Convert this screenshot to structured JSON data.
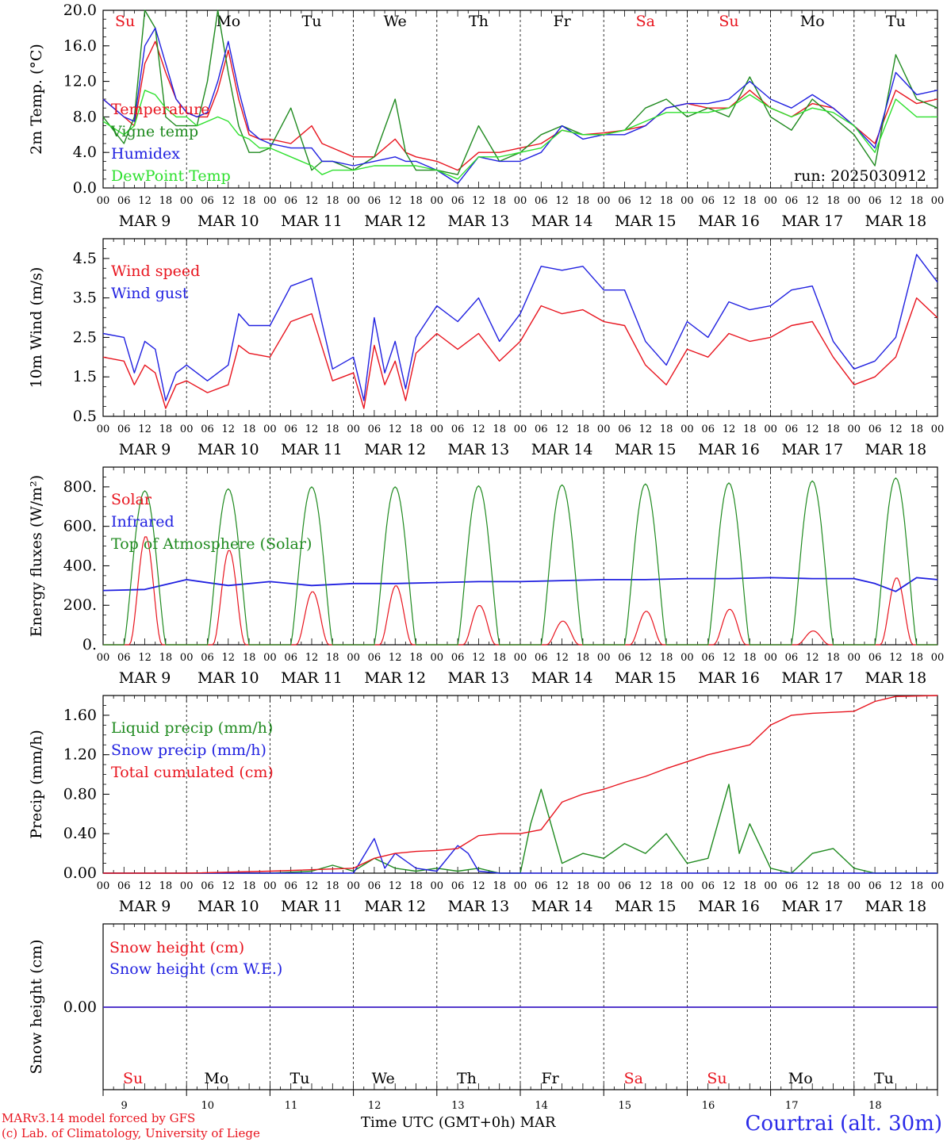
{
  "colors": {
    "red": "#e8141e",
    "green": "#1f8a1f",
    "blue": "#2020e0",
    "lightgreen": "#2ee02e",
    "black": "#000000"
  },
  "days": [
    {
      "abbr": "Su",
      "date": "9",
      "weekend": true
    },
    {
      "abbr": "Mo",
      "date": "10",
      "weekend": false
    },
    {
      "abbr": "Tu",
      "date": "11",
      "weekend": false
    },
    {
      "abbr": "We",
      "date": "12",
      "weekend": false
    },
    {
      "abbr": "Th",
      "date": "13",
      "weekend": false
    },
    {
      "abbr": "Fr",
      "date": "14",
      "weekend": false
    },
    {
      "abbr": "Sa",
      "date": "15",
      "weekend": true
    },
    {
      "abbr": "Su",
      "date": "16",
      "weekend": true
    },
    {
      "abbr": "Mo",
      "date": "17",
      "weekend": false
    },
    {
      "abbr": "Tu",
      "date": "18",
      "weekend": false
    }
  ],
  "month": "MAR",
  "hour_ticks": [
    "00",
    "06",
    "12",
    "18"
  ],
  "chart_data": [
    {
      "type": "line",
      "ylabel": "2m Temp. (°C)",
      "ylim": [
        0,
        20
      ],
      "yticks": [
        "0.0",
        "4.0",
        "8.0",
        "12.0",
        "16.0",
        "20.0"
      ],
      "run_label": "run: 2025030912",
      "x_unit": "hours since MAR 9 00 UTC",
      "series": [
        {
          "name": "Temperature",
          "color": "red",
          "x": [
            0,
            6,
            9,
            12,
            15,
            18,
            21,
            24,
            27,
            30,
            33,
            36,
            39,
            42,
            45,
            48,
            54,
            60,
            63,
            66,
            72,
            78,
            84,
            87,
            90,
            96,
            102,
            108,
            114,
            120,
            126,
            132,
            138,
            144,
            150,
            156,
            162,
            168,
            174,
            180,
            186,
            192,
            198,
            204,
            210,
            216,
            222,
            228,
            234,
            240
          ],
          "y": [
            10,
            8,
            7,
            14,
            16.5,
            13,
            10,
            8.5,
            8,
            8,
            11,
            15.5,
            10,
            6,
            5.5,
            5.5,
            5,
            7,
            5,
            4.5,
            3.5,
            3.5,
            5.5,
            4,
            3.5,
            3,
            2,
            4,
            4,
            4.5,
            5,
            6.5,
            6,
            6.2,
            6.5,
            7,
            9,
            9.5,
            9,
            9,
            11,
            9,
            8,
            9.5,
            9,
            7,
            5,
            11,
            9.5,
            10
          ]
        },
        {
          "name": "Vigne temp",
          "color": "green",
          "x": [
            0,
            6,
            9,
            12,
            15,
            18,
            21,
            24,
            27,
            30,
            33,
            36,
            39,
            42,
            45,
            48,
            54,
            60,
            63,
            66,
            72,
            78,
            84,
            87,
            90,
            96,
            102,
            108,
            114,
            120,
            126,
            132,
            138,
            144,
            150,
            156,
            162,
            168,
            174,
            180,
            186,
            192,
            198,
            204,
            210,
            216,
            222,
            228,
            234,
            240
          ],
          "y": [
            8,
            5,
            8,
            20,
            18,
            8,
            7,
            7,
            7,
            12,
            20,
            13,
            7,
            4,
            4,
            4.5,
            9,
            2,
            3,
            3,
            2,
            3.5,
            10,
            4,
            2,
            2,
            1.5,
            7,
            3,
            4,
            6,
            7,
            6,
            6,
            6.5,
            9,
            10,
            8,
            9,
            8,
            12.5,
            8,
            6.5,
            10,
            8,
            6,
            2.5,
            15,
            10,
            9
          ]
        },
        {
          "name": "Humidex",
          "color": "blue",
          "x": [
            0,
            6,
            9,
            12,
            15,
            18,
            21,
            24,
            27,
            30,
            33,
            36,
            39,
            42,
            45,
            48,
            54,
            60,
            63,
            66,
            72,
            78,
            84,
            87,
            90,
            96,
            102,
            108,
            114,
            120,
            126,
            132,
            138,
            144,
            150,
            156,
            162,
            168,
            174,
            180,
            186,
            192,
            198,
            204,
            210,
            216,
            222,
            228,
            234,
            240
          ],
          "y": [
            10,
            8,
            7.5,
            16,
            18,
            14,
            10,
            8.5,
            8,
            8.5,
            12,
            16.5,
            11,
            6.5,
            5.5,
            5,
            4.5,
            4.5,
            3,
            3,
            2.5,
            3,
            3.5,
            3,
            3,
            2,
            0.5,
            3.5,
            3,
            3,
            4,
            7,
            5.5,
            6,
            6,
            7,
            9,
            9.5,
            9.5,
            10,
            12,
            10,
            9,
            10.5,
            9,
            7,
            4.5,
            13,
            10.5,
            11
          ]
        },
        {
          "name": "DewPoint Temp",
          "color": "lightgreen",
          "x": [
            0,
            6,
            9,
            12,
            15,
            18,
            21,
            24,
            27,
            30,
            33,
            36,
            39,
            42,
            45,
            48,
            54,
            60,
            63,
            66,
            72,
            78,
            84,
            87,
            90,
            96,
            102,
            108,
            114,
            120,
            126,
            132,
            138,
            144,
            150,
            156,
            162,
            168,
            174,
            180,
            186,
            192,
            198,
            204,
            210,
            216,
            222,
            228,
            234,
            240
          ],
          "y": [
            7.5,
            6,
            7,
            11,
            10.5,
            9,
            8,
            8,
            7,
            7.5,
            8,
            7.5,
            6,
            5.5,
            4.5,
            4.5,
            3.5,
            2.5,
            1.5,
            2,
            2,
            2.5,
            2.5,
            2.5,
            2.5,
            2,
            1,
            3.5,
            3.5,
            4,
            4.5,
            6.5,
            6,
            6,
            6.5,
            7.5,
            8.5,
            8.5,
            8.5,
            9,
            10.5,
            9,
            8,
            9,
            8.5,
            7,
            4,
            10,
            8,
            8
          ]
        }
      ]
    },
    {
      "type": "line",
      "ylabel": "10m Wind (m/s)",
      "ylim": [
        0.5,
        5
      ],
      "yticks": [
        "0.5",
        "1.5",
        "2.5",
        "3.5",
        "4.5"
      ],
      "series": [
        {
          "name": "Wind speed",
          "color": "red",
          "x": [
            0,
            6,
            9,
            12,
            15,
            18,
            21,
            24,
            30,
            36,
            39,
            42,
            48,
            54,
            60,
            66,
            72,
            75,
            78,
            81,
            84,
            87,
            90,
            96,
            102,
            108,
            114,
            120,
            126,
            132,
            138,
            144,
            150,
            156,
            162,
            168,
            174,
            180,
            186,
            192,
            198,
            204,
            210,
            216,
            222,
            228,
            234,
            240
          ],
          "y": [
            2,
            1.9,
            1.3,
            1.8,
            1.6,
            0.7,
            1.3,
            1.4,
            1.1,
            1.3,
            2.3,
            2.1,
            2,
            2.9,
            3.1,
            1.4,
            1.6,
            0.7,
            2.3,
            1.3,
            1.9,
            0.9,
            2.1,
            2.6,
            2.2,
            2.6,
            1.9,
            2.4,
            3.3,
            3.1,
            3.2,
            2.9,
            2.8,
            1.8,
            1.3,
            2.2,
            2.0,
            2.6,
            2.4,
            2.5,
            2.8,
            2.9,
            2,
            1.3,
            1.5,
            2,
            3.5,
            3.0
          ]
        },
        {
          "name": "Wind gust",
          "color": "blue",
          "x": [
            0,
            6,
            9,
            12,
            15,
            18,
            21,
            24,
            30,
            36,
            39,
            42,
            48,
            54,
            60,
            66,
            72,
            75,
            78,
            81,
            84,
            87,
            90,
            96,
            102,
            108,
            114,
            120,
            126,
            132,
            138,
            144,
            150,
            156,
            162,
            168,
            174,
            180,
            186,
            192,
            198,
            204,
            210,
            216,
            222,
            228,
            234,
            240
          ],
          "y": [
            2.6,
            2.5,
            1.6,
            2.4,
            2.2,
            0.9,
            1.6,
            1.8,
            1.4,
            1.8,
            3.1,
            2.8,
            2.8,
            3.8,
            4.0,
            1.7,
            2.0,
            0.9,
            3.0,
            1.6,
            2.4,
            1.2,
            2.5,
            3.3,
            2.9,
            3.5,
            2.4,
            3.1,
            4.3,
            4.2,
            4.3,
            3.7,
            3.7,
            2.4,
            1.8,
            2.9,
            2.5,
            3.4,
            3.2,
            3.3,
            3.7,
            3.8,
            2.4,
            1.7,
            1.9,
            2.5,
            4.6,
            3.9
          ]
        }
      ]
    },
    {
      "type": "line",
      "ylabel": "Energy fluxes (W/m²)",
      "ylim": [
        0,
        900
      ],
      "yticks": [
        "0.",
        "200.",
        "400.",
        "600.",
        "800."
      ],
      "series": [
        {
          "name": "Solar",
          "color": "red",
          "peaks": [
            550,
            480,
            270,
            300,
            200,
            120,
            170,
            180,
            70,
            340
          ]
        },
        {
          "name": "Infrared",
          "color": "blue",
          "x": [
            0,
            12,
            24,
            36,
            48,
            60,
            72,
            84,
            96,
            108,
            120,
            132,
            144,
            156,
            168,
            180,
            192,
            204,
            216,
            222,
            228,
            234,
            240
          ],
          "y": [
            275,
            280,
            330,
            300,
            320,
            300,
            310,
            310,
            315,
            320,
            320,
            325,
            330,
            330,
            335,
            335,
            340,
            335,
            335,
            310,
            270,
            340,
            330
          ]
        },
        {
          "name": "Top of Atmosphere (Solar)",
          "color": "green",
          "peaks": [
            780,
            790,
            800,
            800,
            805,
            810,
            815,
            820,
            830,
            845
          ]
        }
      ]
    },
    {
      "type": "line",
      "ylabel": "Precip (mm/h)",
      "ylim": [
        0,
        1.8
      ],
      "yticks": [
        "0.00",
        "0.40",
        "0.80",
        "1.20",
        "1.60"
      ],
      "series": [
        {
          "name": "Liquid precip (mm/h)",
          "color": "green",
          "x": [
            0,
            48,
            60,
            66,
            72,
            78,
            84,
            90,
            96,
            102,
            108,
            114,
            120,
            123,
            126,
            132,
            138,
            144,
            150,
            156,
            162,
            168,
            174,
            180,
            183,
            186,
            192,
            198,
            204,
            210,
            216,
            222,
            240
          ],
          "y": [
            0,
            0,
            0.02,
            0.08,
            0.02,
            0.15,
            0.05,
            0.02,
            0.05,
            0.02,
            0.05,
            0,
            0,
            0.5,
            0.85,
            0.1,
            0.2,
            0.15,
            0.3,
            0.2,
            0.4,
            0.1,
            0.15,
            0.9,
            0.2,
            0.5,
            0.05,
            0,
            0.2,
            0.25,
            0.05,
            0,
            0
          ]
        },
        {
          "name": "Snow precip (mm/h)",
          "color": "blue",
          "x": [
            0,
            72,
            78,
            81,
            84,
            90,
            96,
            102,
            105,
            108,
            114,
            240
          ],
          "y": [
            0,
            0,
            0.35,
            0.05,
            0.2,
            0.05,
            0.02,
            0.28,
            0.2,
            0.02,
            0,
            0
          ]
        },
        {
          "name": "Total cumulated (cm)",
          "color": "red",
          "x": [
            0,
            24,
            48,
            72,
            78,
            84,
            90,
            96,
            102,
            108,
            114,
            120,
            126,
            132,
            138,
            144,
            150,
            156,
            162,
            168,
            174,
            180,
            186,
            192,
            198,
            204,
            210,
            216,
            222,
            228,
            240
          ],
          "y": [
            0,
            0,
            0.02,
            0.05,
            0.15,
            0.2,
            0.22,
            0.23,
            0.25,
            0.38,
            0.4,
            0.4,
            0.44,
            0.72,
            0.8,
            0.85,
            0.92,
            0.98,
            1.06,
            1.13,
            1.2,
            1.25,
            1.3,
            1.5,
            1.6,
            1.62,
            1.63,
            1.64,
            1.74,
            1.79,
            1.8
          ]
        }
      ]
    },
    {
      "type": "line",
      "ylabel": "Snow height (cm)",
      "yticks": [
        "0.00"
      ],
      "series": [
        {
          "name": "Snow height (cm)",
          "color": "red",
          "x": [
            0,
            240
          ],
          "y": [
            0,
            0
          ]
        },
        {
          "name": "Snow height (cm W.E.)",
          "color": "blue",
          "x": [
            0,
            240
          ],
          "y": [
            0,
            0
          ]
        }
      ]
    }
  ],
  "footer": {
    "model": "MARv3.14 model forced by GFS",
    "lab": "(c) Lab. of Climatology, University of Liege",
    "xlabel": "Time UTC (GMT+0h)",
    "xmonth": "MAR",
    "station": "Courtrai (alt. 30m)"
  }
}
